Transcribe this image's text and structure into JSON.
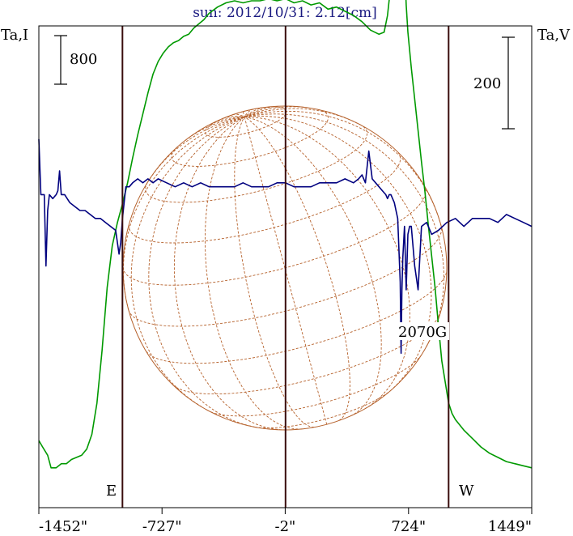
{
  "chart_data": {
    "type": "line",
    "title": "sun: 2012/10/31: 2.12[cm]",
    "left_axis_label": "Ta,I",
    "right_axis_label": "Ta,V",
    "xlim": [
      -1452,
      1449
    ],
    "x_ticks": [
      "-1452\"",
      "-727\"",
      "-2\"",
      "724\"",
      "1449\""
    ],
    "x_tick_values": [
      -1452,
      -727,
      -2,
      724,
      1449
    ],
    "limb_labels": {
      "east": "E",
      "west": "W"
    },
    "limb_positions": [
      -960,
      0,
      960
    ],
    "scale_bars": {
      "intensity": {
        "label": "800",
        "value": 800
      },
      "polarization": {
        "label": "200",
        "value": 200
      }
    },
    "annotations": [
      {
        "text": "2070G"
      }
    ],
    "intensity_ylim": [
      -250,
      2050
    ],
    "polarization_ylim": [
      -395,
      213
    ],
    "series": [
      {
        "color": "#009900",
        "x": [
          -1452,
          -1430,
          -1400,
          -1380,
          -1350,
          -1320,
          -1290,
          -1260,
          -1230,
          -1200,
          -1170,
          -1140,
          -1110,
          -1080,
          -1050,
          -1020,
          -990,
          -960,
          -930,
          -900,
          -870,
          -840,
          -810,
          -780,
          -750,
          -720,
          -690,
          -660,
          -630,
          -600,
          -570,
          -540,
          -510,
          -480,
          -450,
          -400,
          -350,
          -300,
          -250,
          -200,
          -150,
          -100,
          -50,
          0,
          50,
          100,
          150,
          200,
          250,
          300,
          350,
          400,
          450,
          500,
          550,
          580,
          600,
          620,
          640,
          660,
          675,
          690,
          700,
          710,
          720,
          740,
          760,
          780,
          800,
          820,
          840,
          860,
          880,
          900,
          920,
          940,
          960,
          980,
          1000,
          1050,
          1100,
          1150,
          1200,
          1250,
          1300,
          1350,
          1400,
          1449
        ],
        "y": [
          70,
          40,
          0,
          -60,
          -60,
          -40,
          -40,
          -20,
          -10,
          0,
          30,
          100,
          250,
          500,
          800,
          1000,
          1110,
          1200,
          1300,
          1420,
          1530,
          1630,
          1730,
          1820,
          1880,
          1920,
          1950,
          1970,
          1980,
          2000,
          2010,
          2040,
          2060,
          2080,
          2110,
          2140,
          2160,
          2170,
          2160,
          2170,
          2170,
          2180,
          2170,
          2180,
          2160,
          2170,
          2150,
          2160,
          2130,
          2140,
          2120,
          2100,
          2070,
          2030,
          2010,
          2020,
          2100,
          2250,
          2500,
          2850,
          2970,
          2600,
          2350,
          2150,
          2020,
          1850,
          1700,
          1550,
          1400,
          1260,
          1100,
          950,
          800,
          620,
          450,
          350,
          250,
          200,
          170,
          120,
          80,
          40,
          10,
          -10,
          -30,
          -40,
          -50,
          -60
        ]
      },
      {
        "color": "#00007f",
        "x": [
          -1452,
          -1440,
          -1420,
          -1410,
          -1400,
          -1390,
          -1370,
          -1350,
          -1340,
          -1330,
          -1320,
          -1300,
          -1270,
          -1240,
          -1210,
          -1180,
          -1150,
          -1120,
          -1090,
          -1060,
          -1030,
          -1000,
          -980,
          -970,
          -960,
          -950,
          -940,
          -920,
          -900,
          -870,
          -840,
          -810,
          -780,
          -750,
          -700,
          -650,
          -600,
          -550,
          -500,
          -450,
          -400,
          -350,
          -300,
          -250,
          -200,
          -150,
          -100,
          -50,
          0,
          50,
          100,
          150,
          200,
          250,
          300,
          350,
          400,
          430,
          450,
          470,
          490,
          510,
          530,
          550,
          570,
          590,
          600,
          610,
          620,
          640,
          660,
          675,
          680,
          685,
          690,
          700,
          710,
          720,
          730,
          740,
          760,
          780,
          800,
          830,
          860,
          900,
          950,
          1000,
          1050,
          1100,
          1150,
          1200,
          1250,
          1300,
          1350,
          1400,
          1449
        ],
        "y": [
          70,
          0,
          0,
          -90,
          -20,
          0,
          -5,
          0,
          5,
          30,
          0,
          0,
          -10,
          -15,
          -20,
          -20,
          -25,
          -30,
          -30,
          -35,
          -40,
          -45,
          -75,
          -60,
          -30,
          -10,
          10,
          10,
          15,
          20,
          15,
          20,
          15,
          20,
          15,
          10,
          15,
          10,
          15,
          10,
          10,
          10,
          10,
          15,
          10,
          10,
          10,
          15,
          15,
          10,
          10,
          10,
          15,
          15,
          15,
          20,
          15,
          20,
          25,
          15,
          55,
          20,
          15,
          10,
          5,
          0,
          -5,
          0,
          0,
          -10,
          -30,
          -110,
          -200,
          -120,
          -80,
          -40,
          -120,
          -50,
          -40,
          -40,
          -90,
          -120,
          -40,
          -35,
          -50,
          -45,
          -35,
          -30,
          -40,
          -30,
          -30,
          -30,
          -35,
          -25,
          -30,
          -35,
          -40
        ]
      }
    ]
  }
}
